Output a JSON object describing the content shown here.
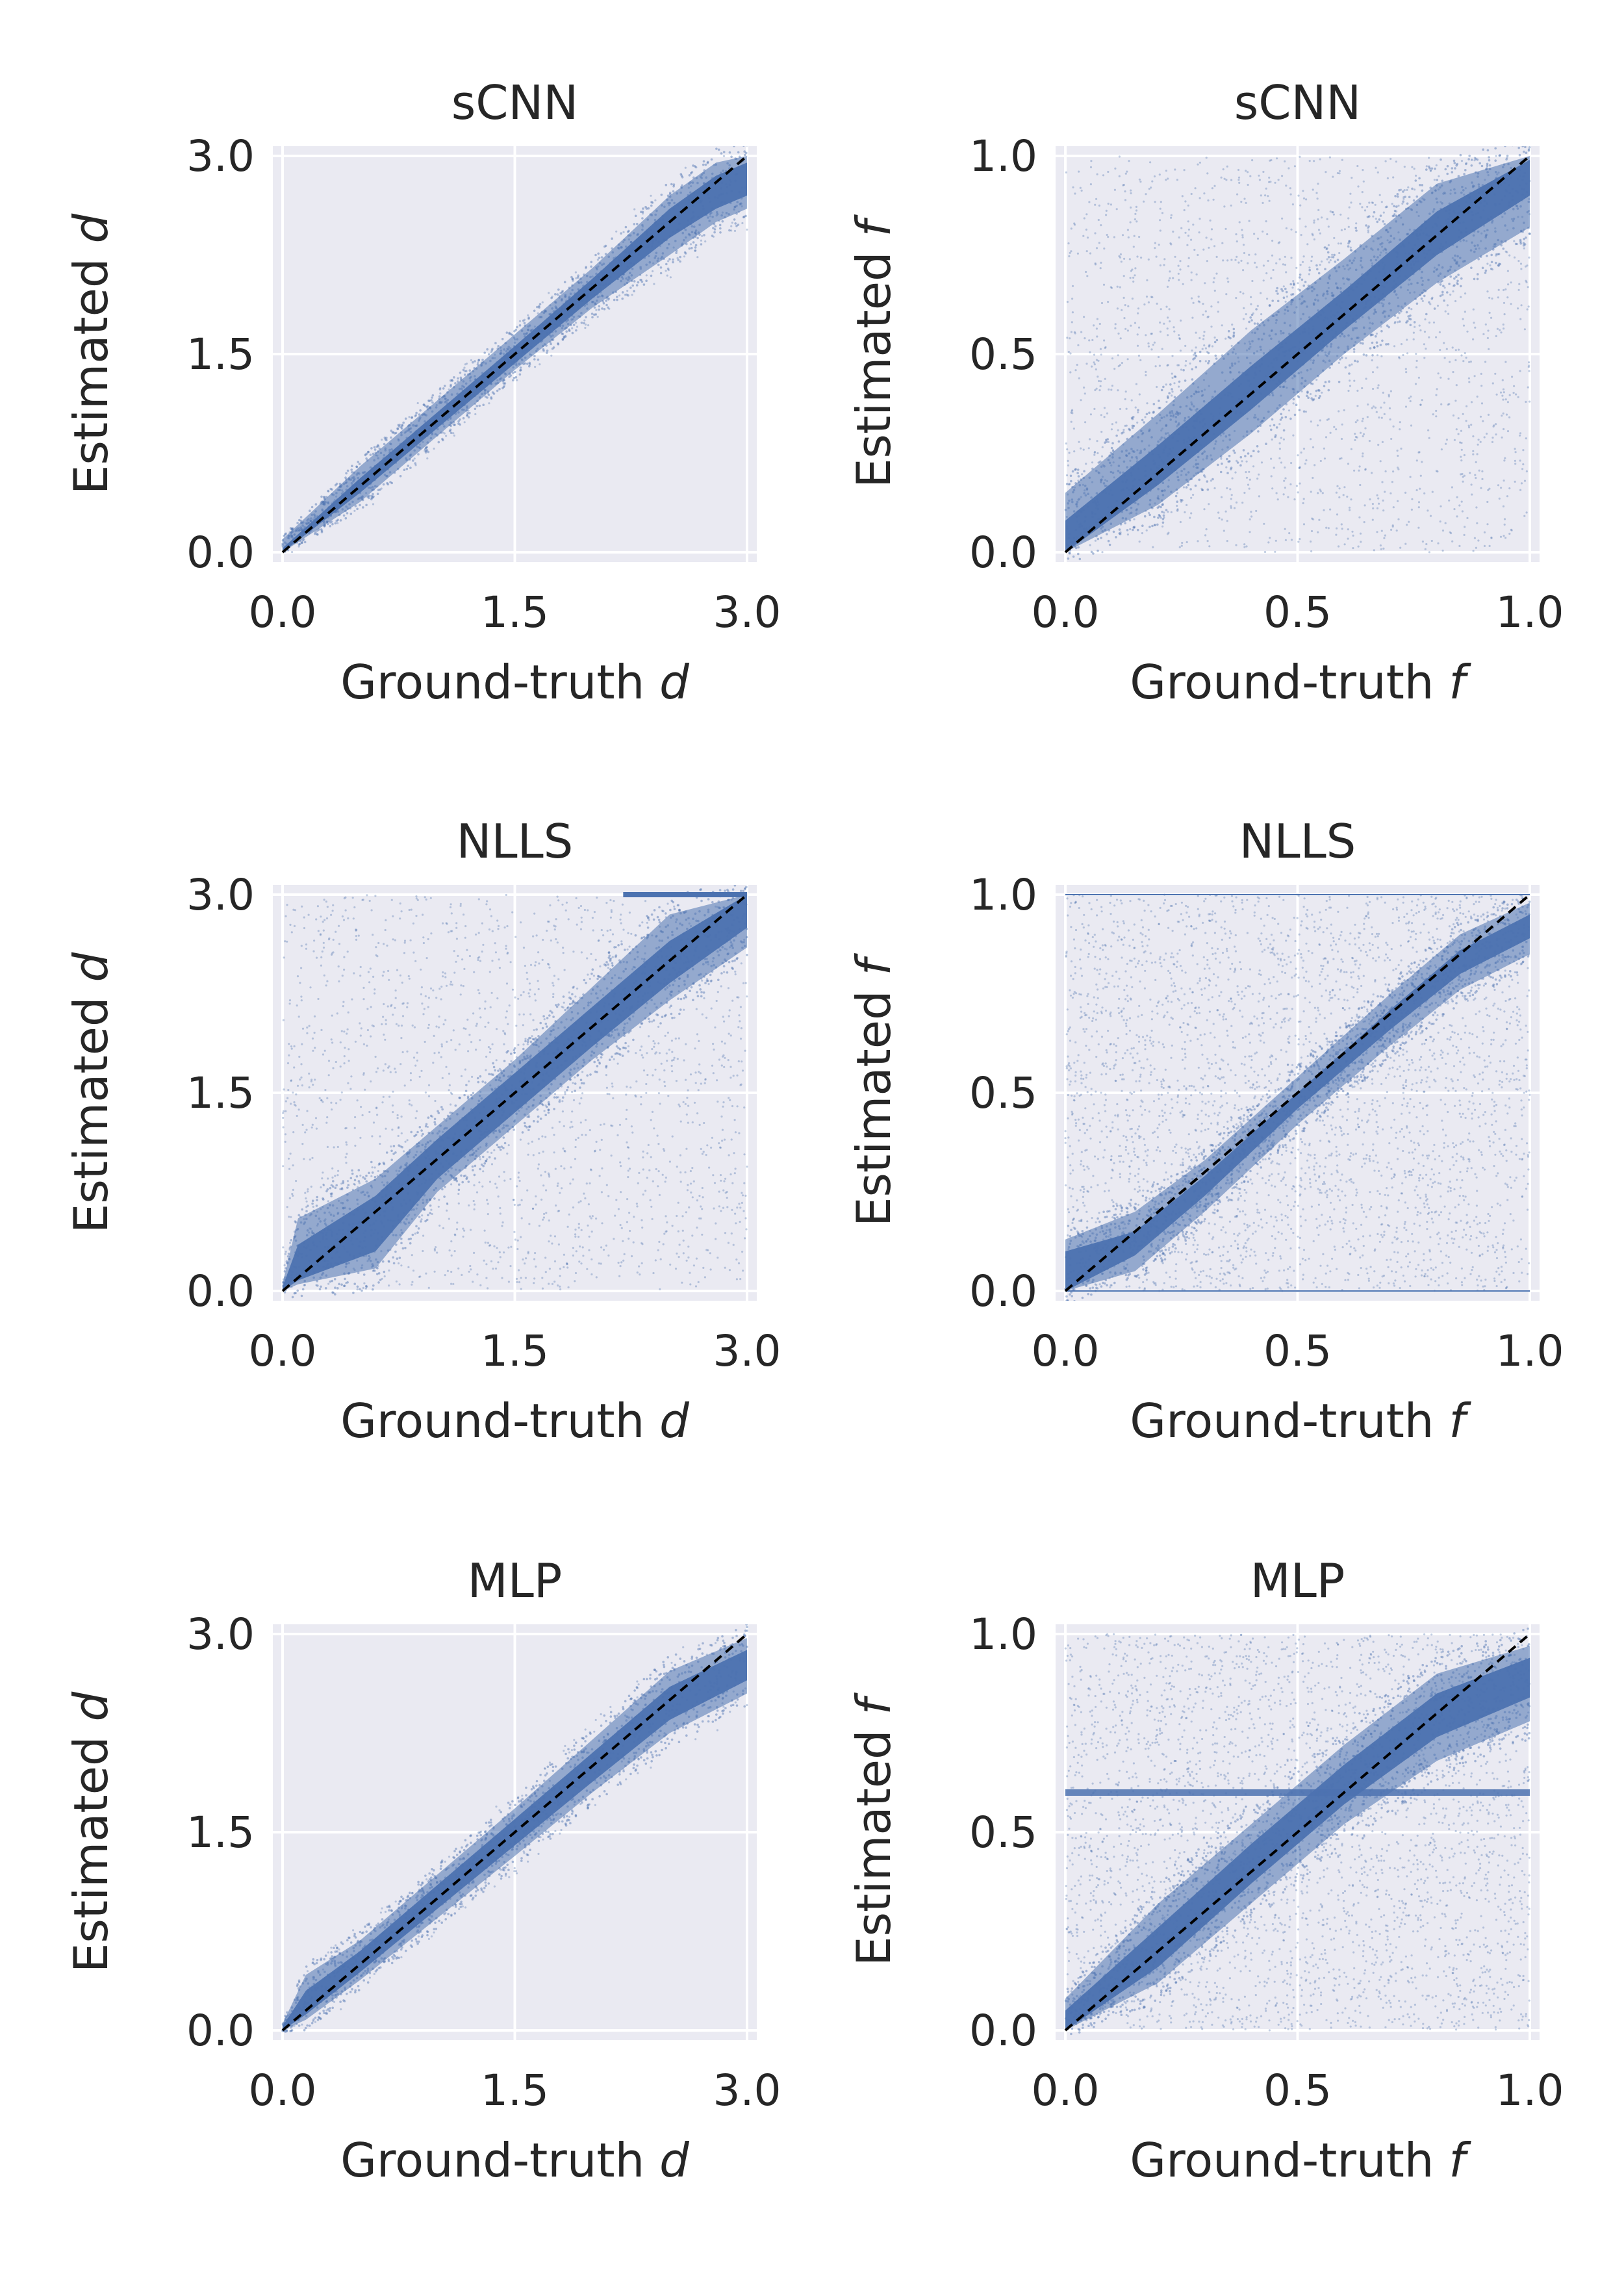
{
  "figure": {
    "layout": "3 rows x 2 columns",
    "style": "seaborn darkgrid"
  },
  "colors": {
    "panel_bg": "#EAEAF2",
    "grid": "#FFFFFF",
    "points": "#4C72B0",
    "identity_line": "#000000",
    "text": "#262626"
  },
  "chart_data": [
    {
      "type": "scatter",
      "title": "sCNN",
      "xlabel": "Ground-truth",
      "xlabel_var": "d",
      "ylabel": "Estimated",
      "ylabel_var": "d",
      "xlim": [
        0,
        3
      ],
      "ylim": [
        0,
        3
      ],
      "xticks": [
        "0.0",
        "1.5",
        "3.0"
      ],
      "yticks": [
        "0.0",
        "1.5",
        "3.0"
      ],
      "identity_line": {
        "from": [
          0,
          0
        ],
        "to": [
          3,
          3
        ],
        "style": "dashed"
      },
      "envelope": {
        "x": [
          0,
          0.5,
          1.0,
          1.5,
          2.0,
          2.5,
          2.8,
          3.0
        ],
        "lower": [
          0,
          0.38,
          0.88,
          1.38,
          1.85,
          2.25,
          2.5,
          2.6
        ],
        "upper": [
          0.1,
          0.65,
          1.15,
          1.65,
          2.15,
          2.7,
          2.95,
          3.0
        ],
        "core_lower": [
          0,
          0.45,
          0.94,
          1.43,
          1.92,
          2.38,
          2.6,
          2.7
        ],
        "core_upper": [
          0.03,
          0.56,
          1.06,
          1.56,
          2.07,
          2.6,
          2.85,
          2.95
        ]
      },
      "scatter_density": "low"
    },
    {
      "type": "scatter",
      "title": "sCNN",
      "xlabel": "Ground-truth",
      "xlabel_var": "f",
      "ylabel": "Estimated",
      "ylabel_var": "f",
      "xlim": [
        0,
        1
      ],
      "ylim": [
        0,
        1
      ],
      "xticks": [
        "0.0",
        "0.5",
        "1.0"
      ],
      "yticks": [
        "0.0",
        "0.5",
        "1.0"
      ],
      "identity_line": {
        "from": [
          0,
          0
        ],
        "to": [
          1,
          1
        ],
        "style": "dashed"
      },
      "envelope": {
        "x": [
          0,
          0.2,
          0.4,
          0.6,
          0.8,
          1.0
        ],
        "lower": [
          0,
          0.12,
          0.3,
          0.5,
          0.68,
          0.82
        ],
        "upper": [
          0.15,
          0.35,
          0.56,
          0.74,
          0.93,
          1.0
        ],
        "core_lower": [
          0,
          0.17,
          0.36,
          0.56,
          0.75,
          0.9
        ],
        "core_upper": [
          0.08,
          0.27,
          0.47,
          0.66,
          0.86,
          0.99
        ]
      },
      "scatter_density": "medium"
    },
    {
      "type": "scatter",
      "title": "NLLS",
      "xlabel": "Ground-truth",
      "xlabel_var": "d",
      "ylabel": "Estimated",
      "ylabel_var": "d",
      "xlim": [
        0,
        3
      ],
      "ylim": [
        0,
        3
      ],
      "xticks": [
        "0.0",
        "1.5",
        "3.0"
      ],
      "yticks": [
        "0.0",
        "1.5",
        "3.0"
      ],
      "identity_line": {
        "from": [
          0,
          0
        ],
        "to": [
          3,
          3
        ],
        "style": "dashed"
      },
      "envelope": {
        "x": [
          0,
          0.1,
          0.6,
          1.0,
          1.5,
          2.0,
          2.5,
          3.0
        ],
        "lower": [
          0,
          0.05,
          0.17,
          0.75,
          1.25,
          1.75,
          2.2,
          2.6
        ],
        "upper": [
          0.05,
          0.55,
          0.85,
          1.25,
          1.75,
          2.3,
          2.85,
          3.0
        ],
        "core_lower": [
          0,
          0.08,
          0.3,
          0.85,
          1.35,
          1.85,
          2.33,
          2.75
        ],
        "core_upper": [
          0.03,
          0.35,
          0.72,
          1.15,
          1.65,
          2.15,
          2.65,
          3.0
        ]
      },
      "saturation_line": {
        "y": 3.0,
        "x_from": 2.2,
        "x_to": 3.0
      },
      "scatter_density": "medium"
    },
    {
      "type": "scatter",
      "title": "NLLS",
      "xlabel": "Ground-truth",
      "xlabel_var": "f",
      "ylabel": "Estimated",
      "ylabel_var": "f",
      "xlim": [
        0,
        1
      ],
      "ylim": [
        0,
        1
      ],
      "xticks": [
        "0.0",
        "0.5",
        "1.0"
      ],
      "yticks": [
        "0.0",
        "0.5",
        "1.0"
      ],
      "identity_line": {
        "from": [
          0,
          0
        ],
        "to": [
          1,
          1
        ],
        "style": "dashed"
      },
      "envelope": {
        "x": [
          0,
          0.15,
          0.3,
          0.5,
          0.7,
          0.85,
          1.0
        ],
        "lower": [
          0,
          0.05,
          0.2,
          0.42,
          0.62,
          0.76,
          0.85
        ],
        "upper": [
          0.13,
          0.2,
          0.33,
          0.54,
          0.75,
          0.9,
          0.98
        ],
        "core_lower": [
          0,
          0.09,
          0.24,
          0.46,
          0.66,
          0.8,
          0.89
        ],
        "core_upper": [
          0.1,
          0.15,
          0.29,
          0.5,
          0.71,
          0.86,
          0.95
        ]
      },
      "saturation_lines": [
        0.0,
        1.0
      ],
      "scatter_density": "high"
    },
    {
      "type": "scatter",
      "title": "MLP",
      "xlabel": "Ground-truth",
      "xlabel_var": "d",
      "ylabel": "Estimated",
      "ylabel_var": "d",
      "xlim": [
        0,
        3
      ],
      "ylim": [
        0,
        3
      ],
      "xticks": [
        "0.0",
        "1.5",
        "3.0"
      ],
      "yticks": [
        "0.0",
        "1.5",
        "3.0"
      ],
      "identity_line": {
        "from": [
          0,
          0
        ],
        "to": [
          3,
          3
        ],
        "style": "dashed"
      },
      "envelope": {
        "x": [
          0,
          0.15,
          0.5,
          1.0,
          1.5,
          2.0,
          2.5,
          3.0
        ],
        "lower": [
          0,
          0.08,
          0.38,
          0.85,
          1.32,
          1.8,
          2.25,
          2.55
        ],
        "upper": [
          0.05,
          0.42,
          0.68,
          1.18,
          1.68,
          2.2,
          2.72,
          2.97
        ],
        "core_lower": [
          0,
          0.12,
          0.44,
          0.92,
          1.4,
          1.88,
          2.35,
          2.65
        ],
        "core_upper": [
          0.03,
          0.3,
          0.6,
          1.1,
          1.6,
          2.1,
          2.6,
          2.88
        ]
      },
      "scatter_density": "low"
    },
    {
      "type": "scatter",
      "title": "MLP",
      "xlabel": "Ground-truth",
      "xlabel_var": "f",
      "ylabel": "Estimated",
      "ylabel_var": "f",
      "xlim": [
        0,
        1
      ],
      "ylim": [
        0,
        1
      ],
      "xticks": [
        "0.0",
        "0.5",
        "1.0"
      ],
      "yticks": [
        "0.0",
        "0.5",
        "1.0"
      ],
      "identity_line": {
        "from": [
          0,
          0
        ],
        "to": [
          1,
          1
        ],
        "style": "dashed"
      },
      "envelope": {
        "x": [
          0,
          0.2,
          0.4,
          0.6,
          0.8,
          1.0
        ],
        "lower": [
          0,
          0.12,
          0.32,
          0.52,
          0.68,
          0.78
        ],
        "upper": [
          0.08,
          0.32,
          0.52,
          0.72,
          0.9,
          0.97
        ],
        "core_lower": [
          0,
          0.16,
          0.37,
          0.57,
          0.74,
          0.84
        ],
        "core_upper": [
          0.05,
          0.26,
          0.47,
          0.67,
          0.85,
          0.94
        ]
      },
      "plateau_line": {
        "y": 0.6,
        "x_from": 0.0,
        "x_to": 1.0
      },
      "scatter_density": "high"
    }
  ]
}
